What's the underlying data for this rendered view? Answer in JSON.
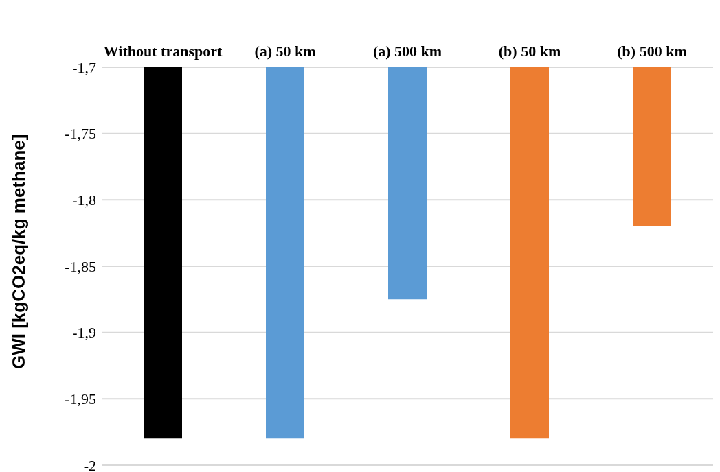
{
  "chart_data": {
    "type": "bar",
    "ylabel": "GWI [kgCO2eq/kg methane]",
    "categories": [
      "Without transport",
      "(a) 50 km",
      "(a) 500 km",
      "(b) 50 km",
      "(b) 500 km"
    ],
    "values": [
      -1.98,
      -1.98,
      -1.875,
      -1.98,
      -1.82
    ],
    "colors": [
      "#000000",
      "#5b9bd5",
      "#5b9bd5",
      "#ed7d31",
      "#ed7d31"
    ],
    "ylim": [
      -2,
      -1.7
    ],
    "yticks": [
      {
        "value": -2,
        "label": "-2"
      },
      {
        "value": -1.95,
        "label": "-1,95"
      },
      {
        "value": -1.9,
        "label": "-1,9"
      },
      {
        "value": -1.85,
        "label": "-1,85"
      },
      {
        "value": -1.8,
        "label": "-1,8"
      },
      {
        "value": -1.75,
        "label": "-1,75"
      },
      {
        "value": -1.7,
        "label": "-1,7"
      }
    ],
    "grid": "y",
    "legend": false
  }
}
